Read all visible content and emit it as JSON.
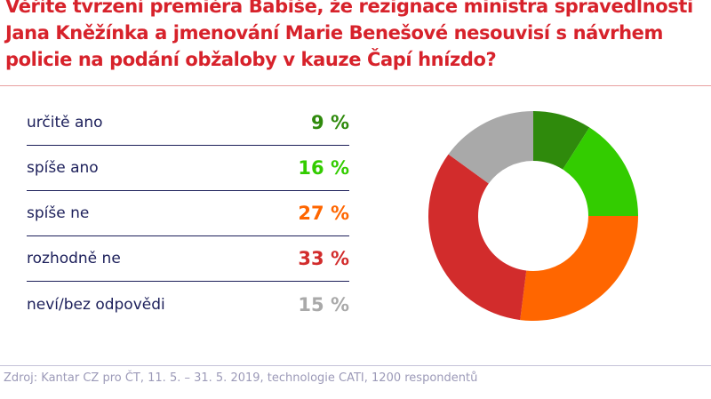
{
  "chart_data": {
    "type": "pie",
    "donut": true,
    "title": "Věříte tvrzení premiéra Babiše, že rezignace ministra spravedlnosti Jana Kněžínka a jmenování Marie Benešové nesouvisí s návrhem policie na podání obžaloby v kauze Čapí hnízdo?",
    "categories": [
      "určitě ano",
      "spíše ano",
      "spíše ne",
      "rozhodně ne",
      "neví/bez odpovědi"
    ],
    "values": [
      9,
      16,
      27,
      33,
      15
    ],
    "value_labels": [
      "9 %",
      "16 %",
      "27 %",
      "33 %",
      "15 %"
    ],
    "colors": [
      "#2f8a0c",
      "#33cc00",
      "#ff6600",
      "#d22c2c",
      "#a9a9a9"
    ],
    "legend": "left"
  },
  "source": "Zdroj: Kantar CZ pro ČT, 11. 5. – 31. 5. 2019, technologie CATI, 1200 respondentů"
}
